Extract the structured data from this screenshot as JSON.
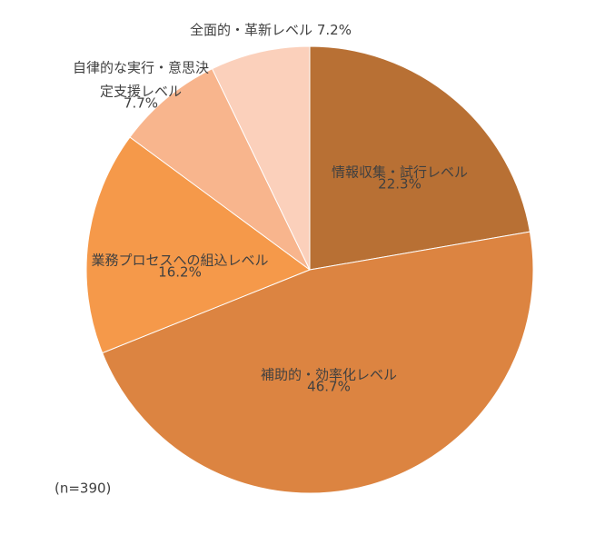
{
  "chart_data": {
    "type": "pie",
    "categories": [
      [
        "情報収集・試行レベル"
      ],
      [
        "補助的・効率化レベル"
      ],
      [
        "業務プロセスへの組込レベル"
      ],
      [
        "自律的な実行・意思決",
        "定支援レベル"
      ],
      [
        "全面的・革新レベル"
      ]
    ],
    "values": [
      22.3,
      46.7,
      16.2,
      7.7,
      7.2
    ],
    "value_labels": [
      "22.3%",
      "46.7%",
      "16.2%",
      "7.7%",
      "7.2%"
    ],
    "colors": [
      "#b87034",
      "#dc8441",
      "#f5994a",
      "#f8b58d",
      "#fbd0bb"
    ],
    "note": "(n=390)"
  }
}
